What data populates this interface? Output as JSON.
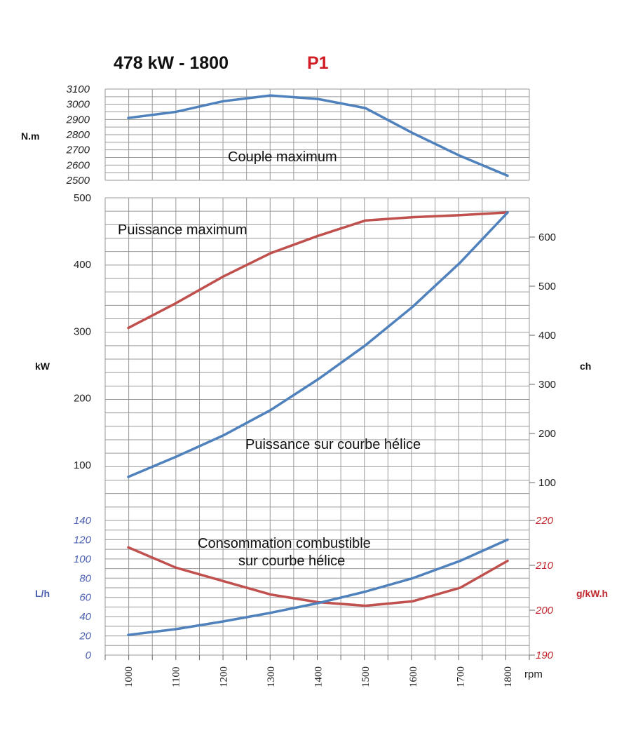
{
  "header": {
    "title": "478 kW - 1800",
    "badge": "P1"
  },
  "colors": {
    "blue": "#4f81bd",
    "red": "#c0504d",
    "axis_blue": "#4a5fb0",
    "axis_red": "#c0282d",
    "grid": "#9a9a9a"
  },
  "chart_data": [
    {
      "type": "line",
      "name": "torque",
      "annotation": "Couple maximum",
      "ylabel": "N.m",
      "ylim": [
        2500,
        3100
      ],
      "yticks": [
        2500,
        2600,
        2700,
        2800,
        2900,
        3000,
        3100
      ],
      "x": [
        1000,
        1100,
        1200,
        1300,
        1400,
        1500,
        1600,
        1700,
        1800
      ],
      "series": [
        {
          "color": "blue",
          "values": [
            2910,
            2950,
            3020,
            3058,
            3035,
            2975,
            2810,
            2660,
            2530
          ]
        }
      ]
    },
    {
      "type": "line",
      "name": "power",
      "ylabel": "kW",
      "ylabel_right": "ch",
      "ylim": [
        0,
        500
      ],
      "yticks": [
        100,
        200,
        300,
        400,
        500
      ],
      "ylim_right_ch": [
        0,
        680
      ],
      "yticks_right": [
        100,
        200,
        300,
        400,
        500,
        600
      ],
      "x": [
        1000,
        1100,
        1200,
        1300,
        1400,
        1500,
        1600,
        1700,
        1800
      ],
      "annotations": [
        "Puissance maximum",
        "Puissance sur courbe hélice"
      ],
      "series": [
        {
          "label": "Puissance maximum",
          "color": "red",
          "values": [
            305,
            342,
            382,
            417,
            443,
            466,
            471,
            474,
            478
          ]
        },
        {
          "label": "Puissance sur courbe hélice",
          "color": "blue",
          "values": [
            82,
            112,
            144,
            182,
            228,
            279,
            337,
            403,
            478
          ]
        }
      ]
    },
    {
      "type": "line",
      "name": "consumption",
      "annotation_lines": [
        "Consommation combustible",
        "sur courbe hélice"
      ],
      "ylabel": "L/h",
      "ylabel_right": "g/kW.h",
      "ylim": [
        0,
        140
      ],
      "yticks": [
        0,
        20,
        40,
        60,
        80,
        100,
        120,
        140
      ],
      "ylim_right": [
        190,
        220
      ],
      "yticks_right": [
        190,
        200,
        210,
        220
      ],
      "x": [
        1000,
        1100,
        1200,
        1300,
        1400,
        1500,
        1600,
        1700,
        1800
      ],
      "xticks": [
        "1000",
        "1100",
        "1200",
        "1300",
        "1400",
        "1500",
        "1600",
        "1700",
        "1800"
      ],
      "xlabel": "rpm",
      "series": [
        {
          "label": "L/h",
          "color": "blue",
          "axis": "left",
          "values": [
            21,
            27,
            35,
            44,
            54,
            66,
            80,
            98,
            120
          ]
        },
        {
          "label": "g/kW.h",
          "color": "red",
          "axis": "right",
          "values": [
            214,
            209.5,
            206.5,
            203.5,
            201.8,
            201,
            202,
            205,
            211
          ]
        }
      ]
    }
  ]
}
